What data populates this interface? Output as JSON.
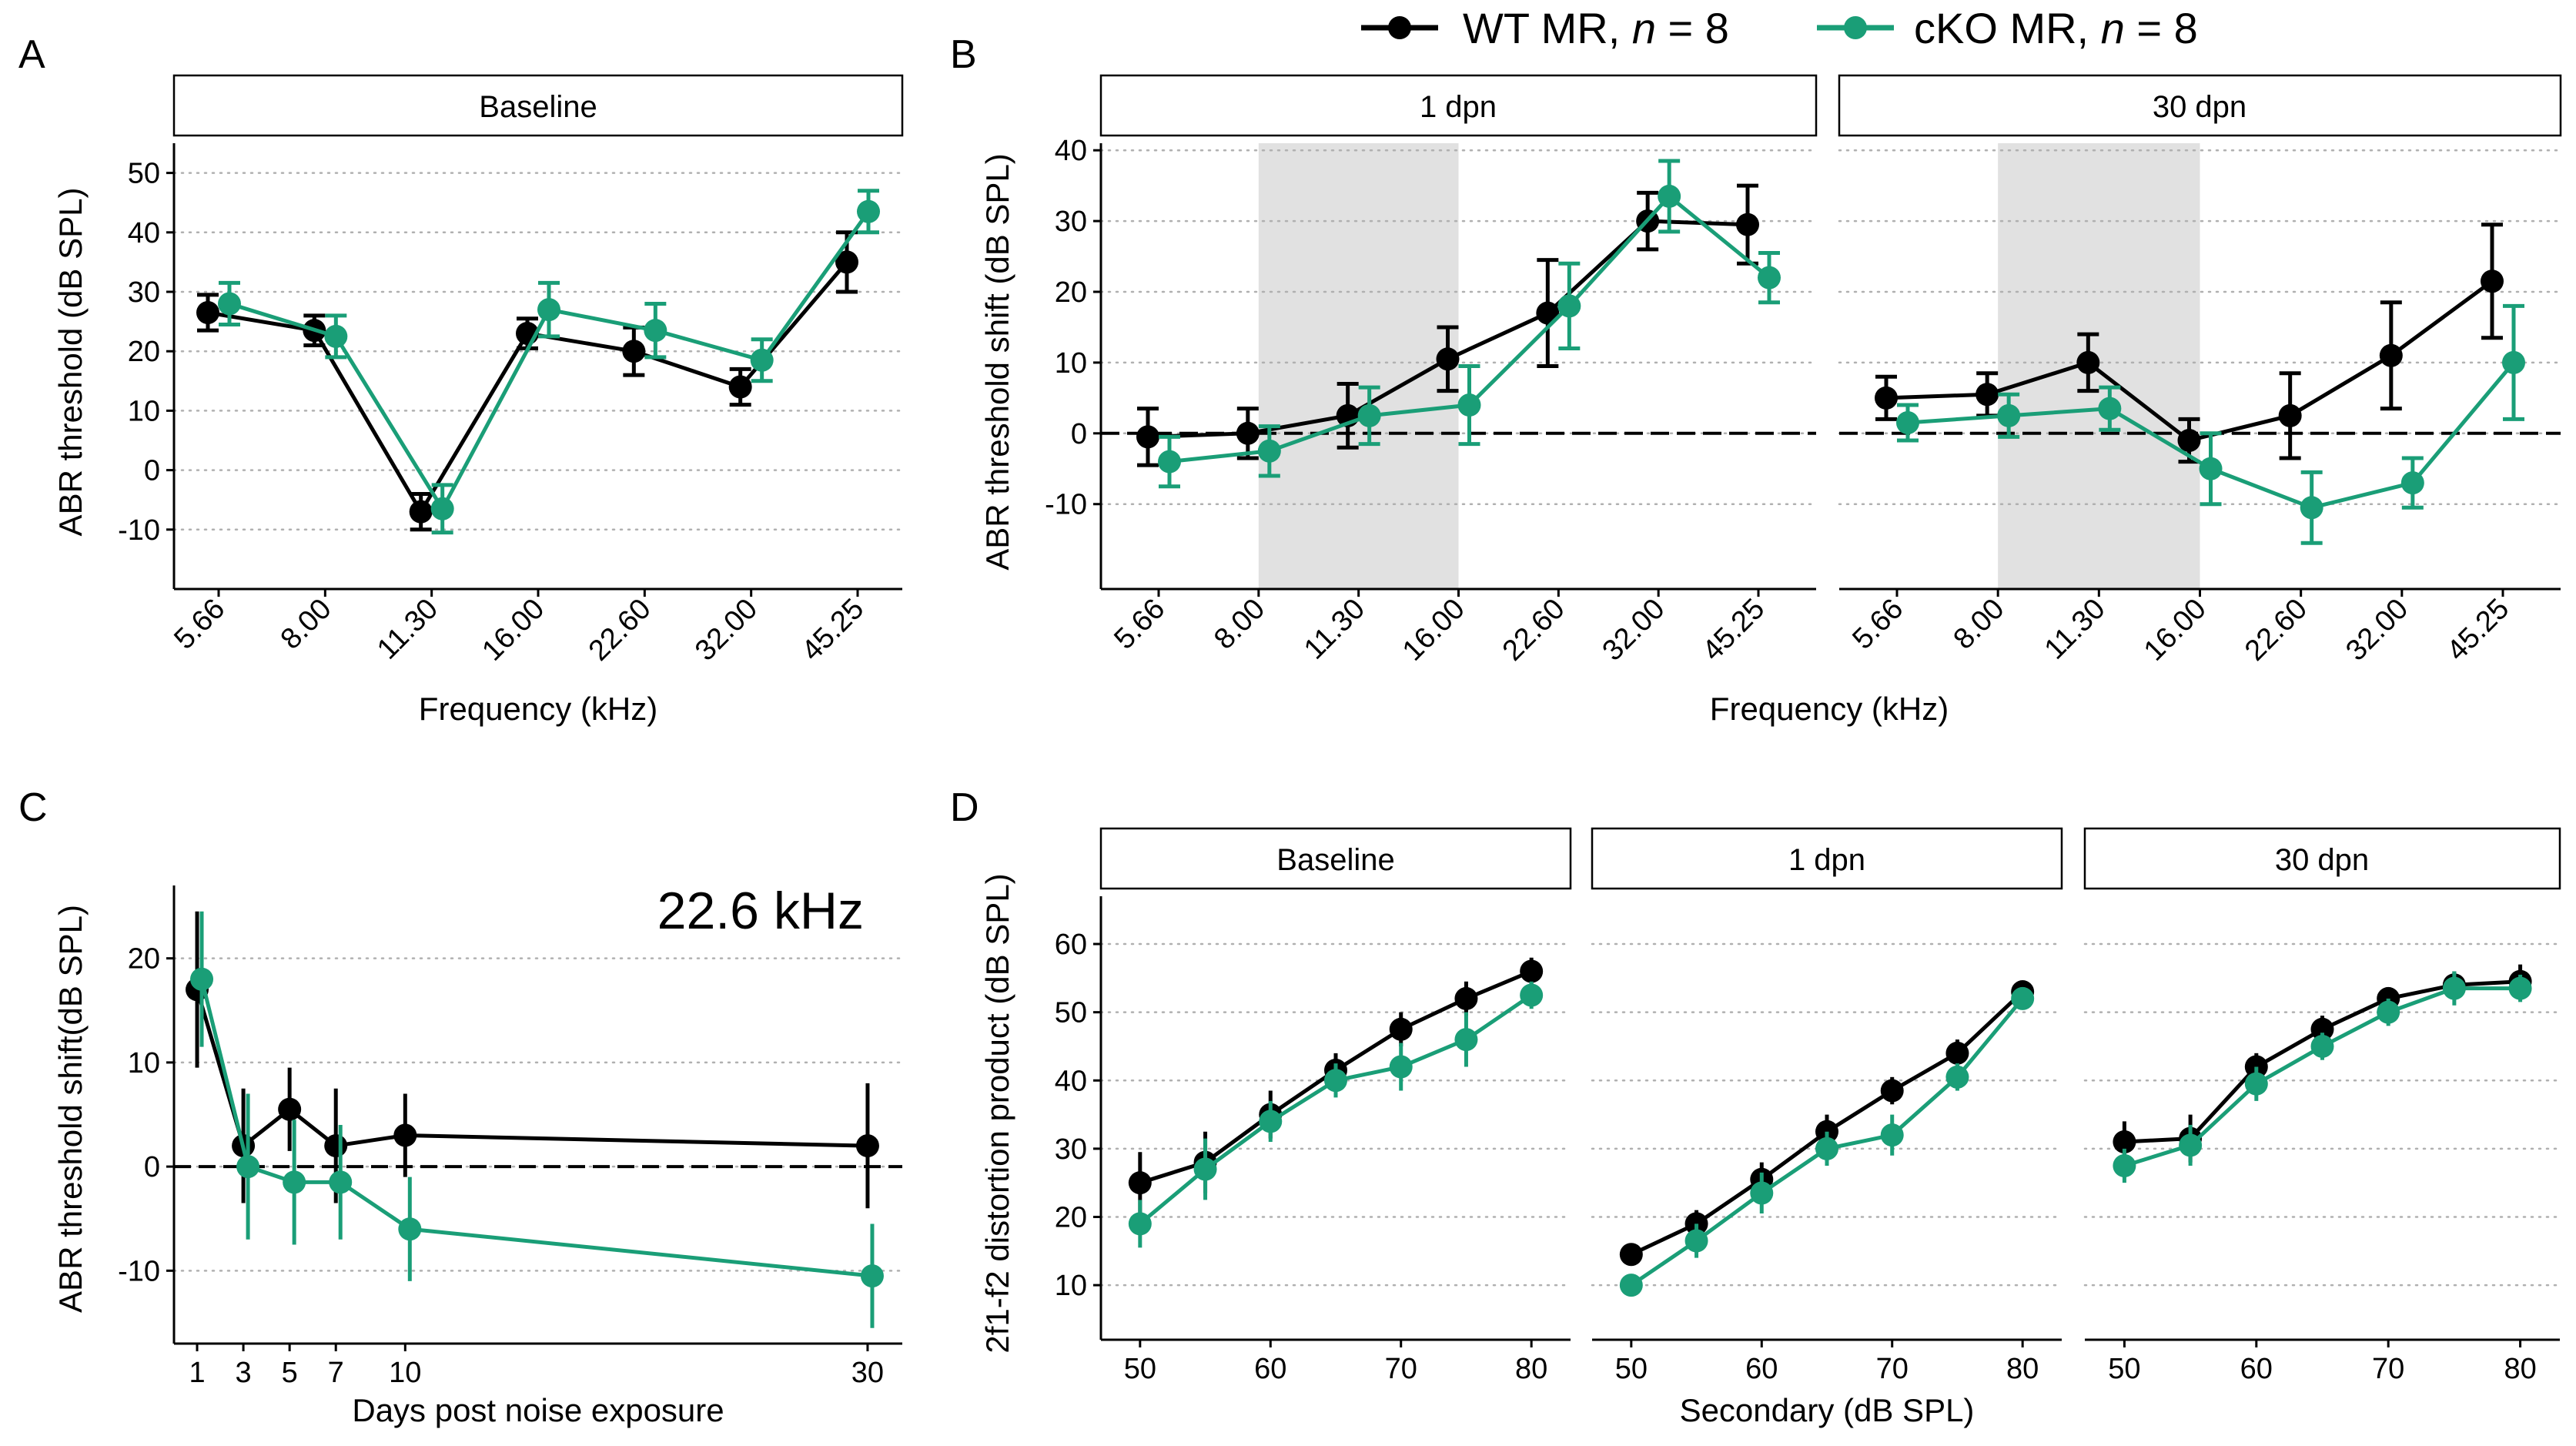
{
  "colors": {
    "wt": "#000000",
    "cko": "#1a9e77",
    "shade": "#e1e1e1",
    "grid": "#b0b0b0"
  },
  "legend": {
    "wt": {
      "prefix": "WT MR, ",
      "n_label": "n",
      "suffix": " = 8"
    },
    "cko": {
      "prefix": "cKO MR, ",
      "n_label": "n",
      "suffix": " = 8"
    }
  },
  "chart_data": [
    {
      "panel": "A",
      "type": "line",
      "strips": [
        "Baseline"
      ],
      "title": "",
      "xlabel": "Frequency (kHz)",
      "ylabel": "ABR threshold (dB SPL)",
      "ylim": [
        -20,
        55
      ],
      "yticks": [
        -10,
        0,
        10,
        20,
        30,
        40,
        50
      ],
      "categories": [
        "5.66",
        "8.00",
        "11.30",
        "16.00",
        "22.60",
        "32.00",
        "45.25"
      ],
      "series": [
        {
          "name": "WT MR",
          "values": [
            26.5,
            23.5,
            -7,
            23,
            20,
            14,
            35
          ],
          "err": [
            3,
            2.5,
            3,
            2.5,
            4,
            3,
            5
          ]
        },
        {
          "name": "cKO MR",
          "values": [
            28,
            22.5,
            -6.5,
            27,
            23.5,
            18.5,
            43.5
          ],
          "err": [
            3.5,
            3.5,
            4,
            4.5,
            4.5,
            3.5,
            3.5
          ]
        }
      ]
    },
    {
      "panel": "B",
      "type": "line",
      "strips": [
        "1 dpn",
        "30 dpn"
      ],
      "xlabel": "Frequency (kHz)",
      "ylabel": "ABR threshold shift (dB SPL)",
      "ylim": [
        -22,
        41
      ],
      "yticks": [
        -10,
        0,
        10,
        20,
        30,
        40
      ],
      "reference_line": 0,
      "shaded_range": [
        "8.00",
        "16.00"
      ],
      "categories": [
        "5.66",
        "8.00",
        "11.30",
        "16.00",
        "22.60",
        "32.00",
        "45.25"
      ],
      "facets": [
        {
          "strip": "1 dpn",
          "series": [
            {
              "name": "WT MR",
              "values": [
                -0.5,
                0,
                2.5,
                10.5,
                17,
                30,
                29.5
              ],
              "err": [
                4,
                3.5,
                4.5,
                4.5,
                7.5,
                4,
                5.5
              ]
            },
            {
              "name": "cKO MR",
              "values": [
                -4,
                -2.5,
                2.5,
                4,
                18,
                33.5,
                22
              ],
              "err": [
                3.5,
                3.5,
                4,
                5.5,
                6,
                5,
                3.5
              ]
            }
          ]
        },
        {
          "strip": "30 dpn",
          "series": [
            {
              "name": "WT MR",
              "values": [
                5,
                5.5,
                10,
                -1,
                2.5,
                11,
                21.5
              ],
              "err": [
                3,
                3,
                4,
                3,
                6,
                7.5,
                8
              ]
            },
            {
              "name": "cKO MR",
              "values": [
                1.5,
                2.5,
                3.5,
                -5,
                -10.5,
                -7,
                10
              ],
              "err": [
                2.5,
                3,
                3,
                5,
                5,
                3.5,
                8
              ]
            }
          ]
        }
      ]
    },
    {
      "panel": "C",
      "type": "line",
      "annotation": "22.6 kHz",
      "xlabel": "Days post noise exposure",
      "ylabel": "ABR threshold shift(dB SPL)",
      "ylim": [
        -17,
        27
      ],
      "yticks": [
        -10,
        0,
        10,
        20
      ],
      "xlim": [
        0,
        31.5
      ],
      "xticks": [
        1,
        3,
        5,
        7,
        10,
        30
      ],
      "reference_line": 0,
      "series": [
        {
          "name": "WT MR",
          "x": [
            1,
            3,
            5,
            7,
            10,
            30
          ],
          "values": [
            17,
            2,
            5.5,
            2,
            3,
            2
          ],
          "err": [
            7.5,
            5.5,
            4,
            5.5,
            4,
            6
          ]
        },
        {
          "name": "cKO MR",
          "x": [
            1,
            3,
            5,
            7,
            10,
            30
          ],
          "values": [
            18,
            0,
            -1.5,
            -1.5,
            -6,
            -10.5
          ],
          "err": [
            6.5,
            7,
            6,
            5.5,
            5,
            5
          ]
        }
      ]
    },
    {
      "panel": "D",
      "type": "line",
      "strips": [
        "Baseline",
        "1 dpn",
        "30 dpn"
      ],
      "xlabel": "Secondary (dB SPL)",
      "ylabel": "2f1-f2 distortion product (dB SPL)",
      "ylim": [
        2,
        67
      ],
      "yticks": [
        10,
        20,
        30,
        40,
        50,
        60
      ],
      "xlim": [
        47,
        83
      ],
      "xticks": [
        50,
        60,
        70,
        80
      ],
      "x": [
        50,
        55,
        60,
        65,
        70,
        75,
        80
      ],
      "facets": [
        {
          "strip": "Baseline",
          "series": [
            {
              "name": "WT MR",
              "values": [
                25,
                28,
                35,
                41.5,
                47.5,
                52,
                56
              ],
              "err": [
                4.5,
                4.5,
                3.5,
                2.5,
                2.5,
                2.5,
                2
              ]
            },
            {
              "name": "cKO MR",
              "values": [
                19,
                27,
                34,
                40,
                42,
                46,
                52.5
              ],
              "err": [
                3.5,
                4.5,
                3,
                2.5,
                3.5,
                4,
                2
              ]
            }
          ]
        },
        {
          "strip": "1 dpn",
          "series": [
            {
              "name": "WT MR",
              "values": [
                14.5,
                19,
                25.5,
                32.5,
                38.5,
                44,
                53
              ],
              "err": [
                1.5,
                2,
                2.5,
                2.5,
                2,
                2,
                1
              ]
            },
            {
              "name": "cKO MR",
              "values": [
                10,
                16.5,
                23.5,
                30,
                32,
                40.5,
                52
              ],
              "err": [
                1.5,
                2.5,
                3,
                2.5,
                3,
                2,
                1.5
              ]
            }
          ]
        },
        {
          "strip": "30 dpn",
          "series": [
            {
              "name": "WT MR",
              "values": [
                31,
                31.5,
                42,
                47.5,
                52,
                54,
                54.5
              ],
              "err": [
                3,
                3.5,
                2,
                2,
                1.5,
                2,
                2.5
              ]
            },
            {
              "name": "cKO MR",
              "values": [
                27.5,
                30.5,
                39.5,
                45,
                50,
                53.5,
                53.5
              ],
              "err": [
                2.5,
                3,
                2.5,
                2,
                2,
                2.5,
                2
              ]
            }
          ]
        }
      ]
    }
  ]
}
